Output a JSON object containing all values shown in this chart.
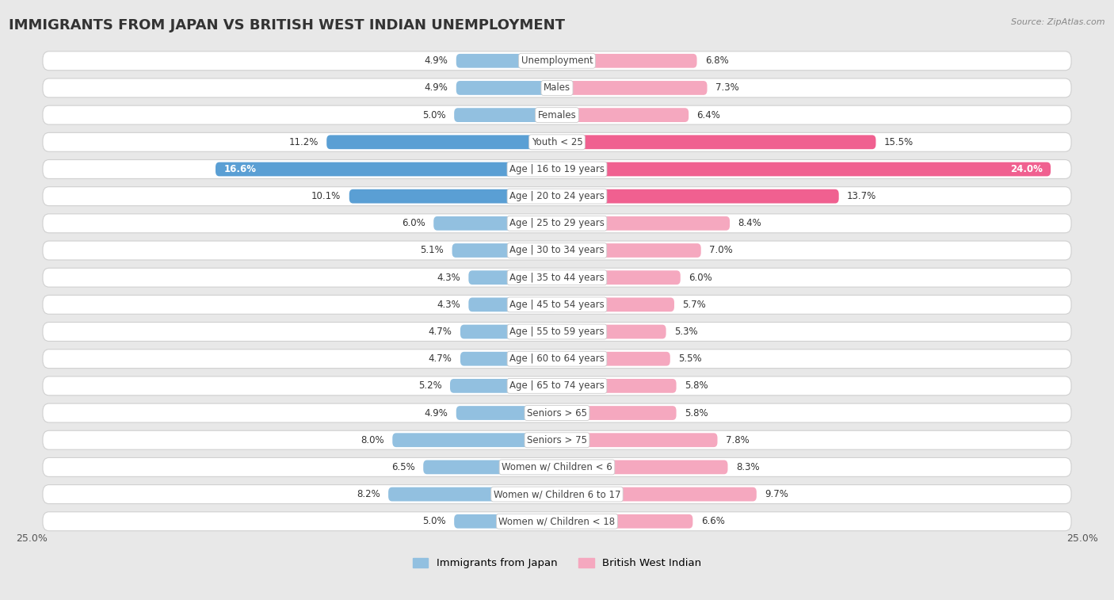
{
  "title": "IMMIGRANTS FROM JAPAN VS BRITISH WEST INDIAN UNEMPLOYMENT",
  "source": "Source: ZipAtlas.com",
  "categories": [
    "Unemployment",
    "Males",
    "Females",
    "Youth < 25",
    "Age | 16 to 19 years",
    "Age | 20 to 24 years",
    "Age | 25 to 29 years",
    "Age | 30 to 34 years",
    "Age | 35 to 44 years",
    "Age | 45 to 54 years",
    "Age | 55 to 59 years",
    "Age | 60 to 64 years",
    "Age | 65 to 74 years",
    "Seniors > 65",
    "Seniors > 75",
    "Women w/ Children < 6",
    "Women w/ Children 6 to 17",
    "Women w/ Children < 18"
  ],
  "japan_values": [
    4.9,
    4.9,
    5.0,
    11.2,
    16.6,
    10.1,
    6.0,
    5.1,
    4.3,
    4.3,
    4.7,
    4.7,
    5.2,
    4.9,
    8.0,
    6.5,
    8.2,
    5.0
  ],
  "bwi_values": [
    6.8,
    7.3,
    6.4,
    15.5,
    24.0,
    13.7,
    8.4,
    7.0,
    6.0,
    5.7,
    5.3,
    5.5,
    5.8,
    5.8,
    7.8,
    8.3,
    9.7,
    6.6
  ],
  "japan_color": "#92c0e0",
  "bwi_color": "#f5a8bf",
  "japan_highlight_color": "#5a9fd4",
  "bwi_highlight_color": "#f06090",
  "highlight_rows": [
    3,
    4,
    5
  ],
  "xlim": 25.0,
  "fig_bg": "#e8e8e8",
  "row_bg": "#ffffff",
  "row_border": "#d0d0d0",
  "legend_japan": "Immigrants from Japan",
  "legend_bwi": "British West Indian",
  "title_fontsize": 13,
  "label_fontsize": 8.5,
  "value_fontsize": 8.5
}
